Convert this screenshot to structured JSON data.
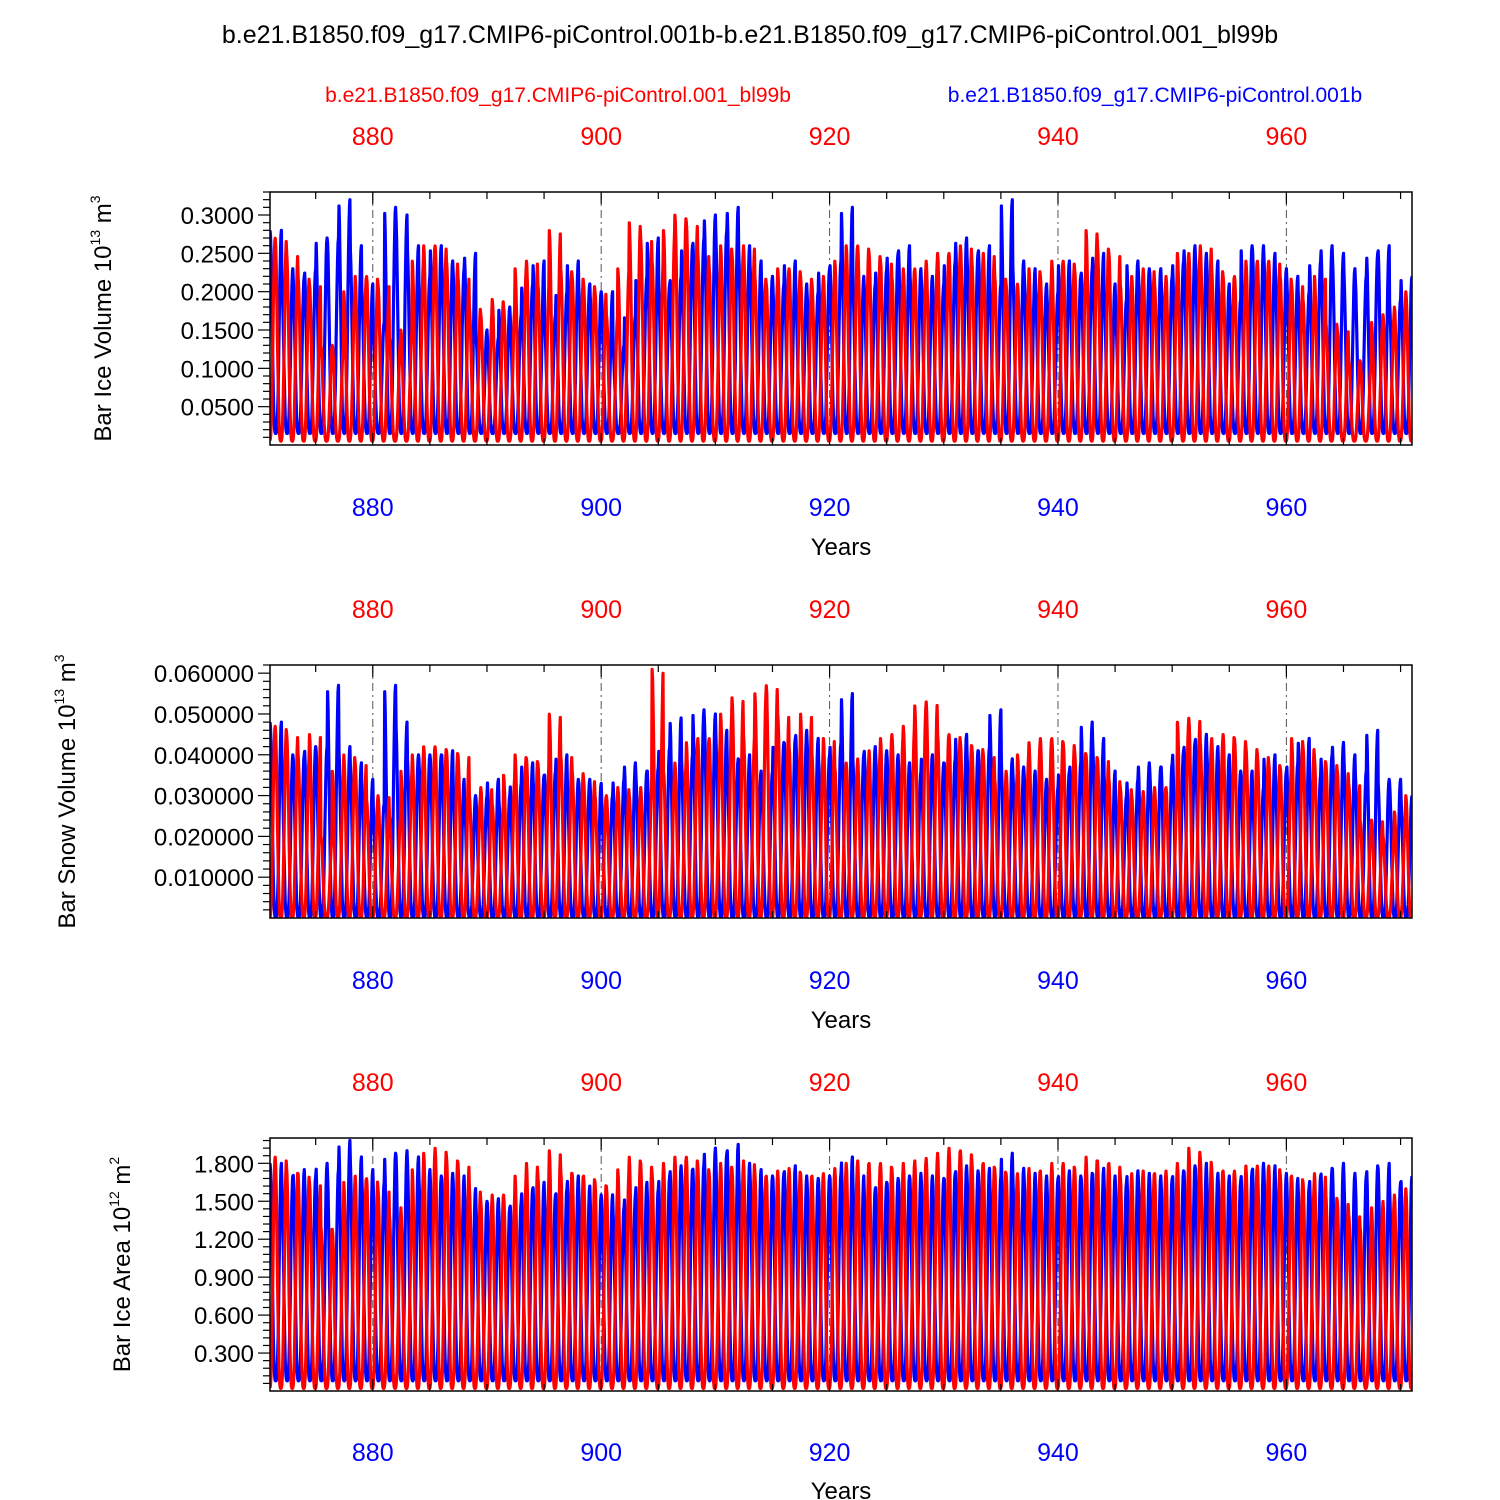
{
  "title": "b.e21.B1850.f09_g17.CMIP6-piControl.001b-b.e21.B1850.f09_g17.CMIP6-piControl.001_bl99b",
  "legend": {
    "red_case": "b.e21.B1850.f09_g17.CMIP6-piControl.001_bl99b",
    "blue_case": "b.e21.B1850.f09_g17.CMIP6-piControl.001b"
  },
  "colors": {
    "red": "#ff0000",
    "blue": "#0000ff",
    "axis": "#000000"
  },
  "chart_data": [
    {
      "type": "line",
      "ylabel_main": "Bar Ice Volume 10",
      "ylabel_exp": "13",
      "ylabel_unit": " m",
      "ylabel_unit_exp": "3",
      "xlabel": "Years",
      "xlim": [
        871,
        971
      ],
      "ylim": [
        0.0,
        0.33
      ],
      "yticks": [
        "0.0500",
        "0.1000",
        "0.1500",
        "0.2000",
        "0.2500",
        "0.3000"
      ],
      "ytick_values": [
        0.05,
        0.1,
        0.15,
        0.2,
        0.25,
        0.3
      ],
      "xticks": [
        "880",
        "900",
        "920",
        "940",
        "960"
      ],
      "xtick_values": [
        880,
        900,
        920,
        940,
        960
      ],
      "series": [
        {
          "name": "b.e21.B1850.f09_g17.CMIP6-piControl.001b",
          "color": "blue",
          "period_start": 871,
          "min": 0.015,
          "max_by_year": [
            0.28,
            0.23,
            0.22,
            0.23,
            0.27,
            0.27,
            0.32,
            0.26,
            0.21,
            0.16,
            0.31,
            0.3,
            0.26,
            0.22,
            0.26,
            0.24,
            0.23,
            0.25,
            0.15,
            0.14,
            0.18,
            0.17,
            0.21,
            0.24,
            0.17,
            0.2,
            0.24,
            0.21,
            0.2,
            0.2,
            0.13,
            0.17,
            0.22,
            0.27,
            0.21,
            0.22,
            0.26,
            0.27,
            0.3,
            0.28,
            0.31,
            0.26,
            0.24,
            0.22,
            0.21,
            0.24,
            0.21,
            0.2,
            0.23,
            0.24,
            0.31,
            0.22,
            0.21,
            0.23,
            0.25,
            0.26,
            0.23,
            0.22,
            0.21,
            0.24,
            0.27,
            0.25,
            0.26,
            0.21,
            0.32,
            0.24,
            0.23,
            0.21,
            0.2,
            0.24,
            0.22,
            0.23,
            0.25,
            0.21,
            0.19,
            0.24,
            0.23,
            0.23,
            0.22,
            0.24,
            0.26,
            0.25,
            0.24,
            0.21,
            0.19,
            0.26,
            0.26,
            0.25,
            0.23,
            0.22,
            0.2,
            0.24,
            0.26,
            0.25,
            0.23,
            0.22,
            0.25,
            0.26,
            0.19,
            0.22
          ]
        },
        {
          "name": "b.e21.B1850.f09_g17.CMIP6-piControl.001_bl99b",
          "color": "red",
          "period_start": 871.45,
          "min": 0.005,
          "max_by_year": [
            0.27,
            0.25,
            0.22,
            0.21,
            0.13,
            0.13,
            0.2,
            0.22,
            0.22,
            0.21,
            0.14,
            0.15,
            0.24,
            0.26,
            0.26,
            0.24,
            0.22,
            0.18,
            0.17,
            0.19,
            0.18,
            0.23,
            0.24,
            0.21,
            0.28,
            0.23,
            0.22,
            0.21,
            0.2,
            0.17,
            0.23,
            0.29,
            0.27,
            0.24,
            0.28,
            0.3,
            0.29,
            0.25,
            0.23,
            0.26,
            0.25,
            0.26,
            0.22,
            0.21,
            0.23,
            0.23,
            0.22,
            0.21,
            0.22,
            0.24,
            0.26,
            0.26,
            0.25,
            0.24,
            0.22,
            0.23,
            0.23,
            0.24,
            0.25,
            0.25,
            0.26,
            0.24,
            0.25,
            0.22,
            0.21,
            0.21,
            0.23,
            0.22,
            0.24,
            0.24,
            0.23,
            0.28,
            0.26,
            0.25,
            0.21,
            0.22,
            0.23,
            0.21,
            0.22,
            0.25,
            0.25,
            0.26,
            0.23,
            0.22,
            0.22,
            0.24,
            0.24,
            0.24,
            0.22,
            0.21,
            0.19,
            0.22,
            0.16,
            0.15,
            0.11,
            0.11,
            0.16,
            0.17,
            0.18,
            0.2
          ]
        }
      ]
    },
    {
      "type": "line",
      "ylabel_main": "Bar Snow Volume 10",
      "ylabel_exp": "13",
      "ylabel_unit": " m",
      "ylabel_unit_exp": "3",
      "xlabel": "Years",
      "xlim": [
        871,
        971
      ],
      "ylim": [
        0.0,
        0.062
      ],
      "yticks": [
        "0.010000",
        "0.020000",
        "0.030000",
        "0.040000",
        "0.050000",
        "0.060000"
      ],
      "ytick_values": [
        0.01,
        0.02,
        0.03,
        0.04,
        0.05,
        0.06
      ],
      "xticks": [
        "880",
        "900",
        "920",
        "940",
        "960"
      ],
      "xtick_values": [
        880,
        900,
        920,
        940,
        960
      ],
      "series": [
        {
          "name": "b.e21.B1850.f09_g17.CMIP6-piControl.001b",
          "color": "blue",
          "period_start": 871,
          "min": 0.0,
          "max_by_year": [
            0.048,
            0.04,
            0.04,
            0.042,
            0.042,
            0.057,
            0.042,
            0.038,
            0.034,
            0.028,
            0.057,
            0.048,
            0.04,
            0.04,
            0.04,
            0.041,
            0.034,
            0.03,
            0.03,
            0.034,
            0.03,
            0.033,
            0.038,
            0.035,
            0.036,
            0.04,
            0.034,
            0.034,
            0.033,
            0.03,
            0.034,
            0.038,
            0.036,
            0.037,
            0.042,
            0.049,
            0.04,
            0.051,
            0.05,
            0.046,
            0.039,
            0.04,
            0.036,
            0.036,
            0.043,
            0.044,
            0.046,
            0.044,
            0.04,
            0.043,
            0.055,
            0.04,
            0.042,
            0.041,
            0.04,
            0.038,
            0.036,
            0.04,
            0.038,
            0.039,
            0.045,
            0.041,
            0.042,
            0.051,
            0.039,
            0.037,
            0.036,
            0.034,
            0.032,
            0.036,
            0.038,
            0.048,
            0.044,
            0.036,
            0.03,
            0.034,
            0.038,
            0.037,
            0.038,
            0.041,
            0.043,
            0.045,
            0.042,
            0.04,
            0.036,
            0.036,
            0.032,
            0.04,
            0.036,
            0.038,
            0.044,
            0.035,
            0.04,
            0.043,
            0.04,
            0.036,
            0.046,
            0.034,
            0.034,
            0.03
          ]
        },
        {
          "name": "b.e21.B1850.f09_g17.CMIP6-piControl.001_bl99b",
          "color": "red",
          "period_start": 871.45,
          "min": 0.0,
          "max_by_year": [
            0.047,
            0.045,
            0.04,
            0.045,
            0.02,
            0.036,
            0.04,
            0.038,
            0.029,
            0.03,
            0.025,
            0.036,
            0.04,
            0.042,
            0.042,
            0.041,
            0.04,
            0.03,
            0.032,
            0.028,
            0.035,
            0.04,
            0.039,
            0.038,
            0.05,
            0.04,
            0.036,
            0.034,
            0.03,
            0.03,
            0.032,
            0.03,
            0.032,
            0.061,
            0.036,
            0.038,
            0.043,
            0.044,
            0.044,
            0.05,
            0.054,
            0.045,
            0.055,
            0.057,
            0.05,
            0.042,
            0.05,
            0.04,
            0.044,
            0.037,
            0.038,
            0.039,
            0.041,
            0.044,
            0.045,
            0.047,
            0.052,
            0.053,
            0.045,
            0.045,
            0.043,
            0.042,
            0.04,
            0.034,
            0.036,
            0.04,
            0.043,
            0.044,
            0.044,
            0.043,
            0.041,
            0.04,
            0.039,
            0.034,
            0.032,
            0.03,
            0.031,
            0.032,
            0.032,
            0.048,
            0.049,
            0.043,
            0.044,
            0.045,
            0.044,
            0.042,
            0.04,
            0.038,
            0.037,
            0.044,
            0.042,
            0.039,
            0.038,
            0.036,
            0.033,
            0.024,
            0.024,
            0.02,
            0.026,
            0.03
          ]
        }
      ]
    },
    {
      "type": "line",
      "ylabel_main": "Bar Ice Area 10",
      "ylabel_exp": "12",
      "ylabel_unit": " m",
      "ylabel_unit_exp": "2",
      "xlabel": "Years",
      "xlim": [
        871,
        971
      ],
      "ylim": [
        0.0,
        2.0
      ],
      "yticks": [
        "0.300",
        "0.600",
        "0.900",
        "1.200",
        "1.500",
        "1.800"
      ],
      "ytick_values": [
        0.3,
        0.6,
        0.9,
        1.2,
        1.5,
        1.8
      ],
      "xticks": [
        "880",
        "900",
        "920",
        "940",
        "960"
      ],
      "xtick_values": [
        880,
        900,
        920,
        940,
        960
      ],
      "series": [
        {
          "name": "b.e21.B1850.f09_g17.CMIP6-piControl.001b",
          "color": "blue",
          "period_start": 871,
          "min": 0.08,
          "max_by_year": [
            1.8,
            1.7,
            1.75,
            1.7,
            1.8,
            1.75,
            1.98,
            1.85,
            1.75,
            1.65,
            1.88,
            1.9,
            1.85,
            1.75,
            1.7,
            1.72,
            1.7,
            1.6,
            1.5,
            1.52,
            1.45,
            1.5,
            1.6,
            1.65,
            1.55,
            1.6,
            1.7,
            1.62,
            1.55,
            1.55,
            1.45,
            1.55,
            1.65,
            1.6,
            1.7,
            1.78,
            1.75,
            1.8,
            1.92,
            1.88,
            1.95,
            1.8,
            1.75,
            1.7,
            1.72,
            1.78,
            1.7,
            1.68,
            1.7,
            1.72,
            1.85,
            1.7,
            1.6,
            1.65,
            1.68,
            1.7,
            1.72,
            1.7,
            1.68,
            1.72,
            1.78,
            1.74,
            1.76,
            1.7,
            1.88,
            1.76,
            1.72,
            1.7,
            1.68,
            1.74,
            1.7,
            1.72,
            1.76,
            1.7,
            1.65,
            1.74,
            1.72,
            1.7,
            1.68,
            1.74,
            1.78,
            1.8,
            1.72,
            1.7,
            1.66,
            1.74,
            1.8,
            1.78,
            1.72,
            1.68,
            1.62,
            1.7,
            1.76,
            1.8,
            1.72,
            1.7,
            1.78,
            1.8,
            1.65,
            1.7
          ]
        },
        {
          "name": "b.e21.B1850.f09_g17.CMIP6-piControl.001_bl99b",
          "color": "red",
          "period_start": 871.45,
          "min": 0.02,
          "max_by_year": [
            1.85,
            1.75,
            1.72,
            1.65,
            1.3,
            1.28,
            1.65,
            1.7,
            1.68,
            1.6,
            1.4,
            1.45,
            1.75,
            1.88,
            1.92,
            1.85,
            1.8,
            1.6,
            1.5,
            1.55,
            1.55,
            1.7,
            1.8,
            1.7,
            1.9,
            1.75,
            1.72,
            1.7,
            1.65,
            1.62,
            1.75,
            1.85,
            1.8,
            1.72,
            1.8,
            1.85,
            1.85,
            1.78,
            1.72,
            1.8,
            1.76,
            1.82,
            1.72,
            1.7,
            1.74,
            1.76,
            1.72,
            1.7,
            1.72,
            1.76,
            1.8,
            1.82,
            1.8,
            1.8,
            1.76,
            1.8,
            1.82,
            1.84,
            1.88,
            1.92,
            1.9,
            1.82,
            1.8,
            1.76,
            1.72,
            1.72,
            1.76,
            1.74,
            1.8,
            1.8,
            1.76,
            1.85,
            1.82,
            1.8,
            1.7,
            1.72,
            1.74,
            1.72,
            1.74,
            1.8,
            1.92,
            1.84,
            1.76,
            1.74,
            1.74,
            1.78,
            1.78,
            1.78,
            1.72,
            1.7,
            1.65,
            1.72,
            1.55,
            1.5,
            1.4,
            1.3,
            1.45,
            1.5,
            1.55,
            1.6
          ]
        }
      ]
    }
  ]
}
